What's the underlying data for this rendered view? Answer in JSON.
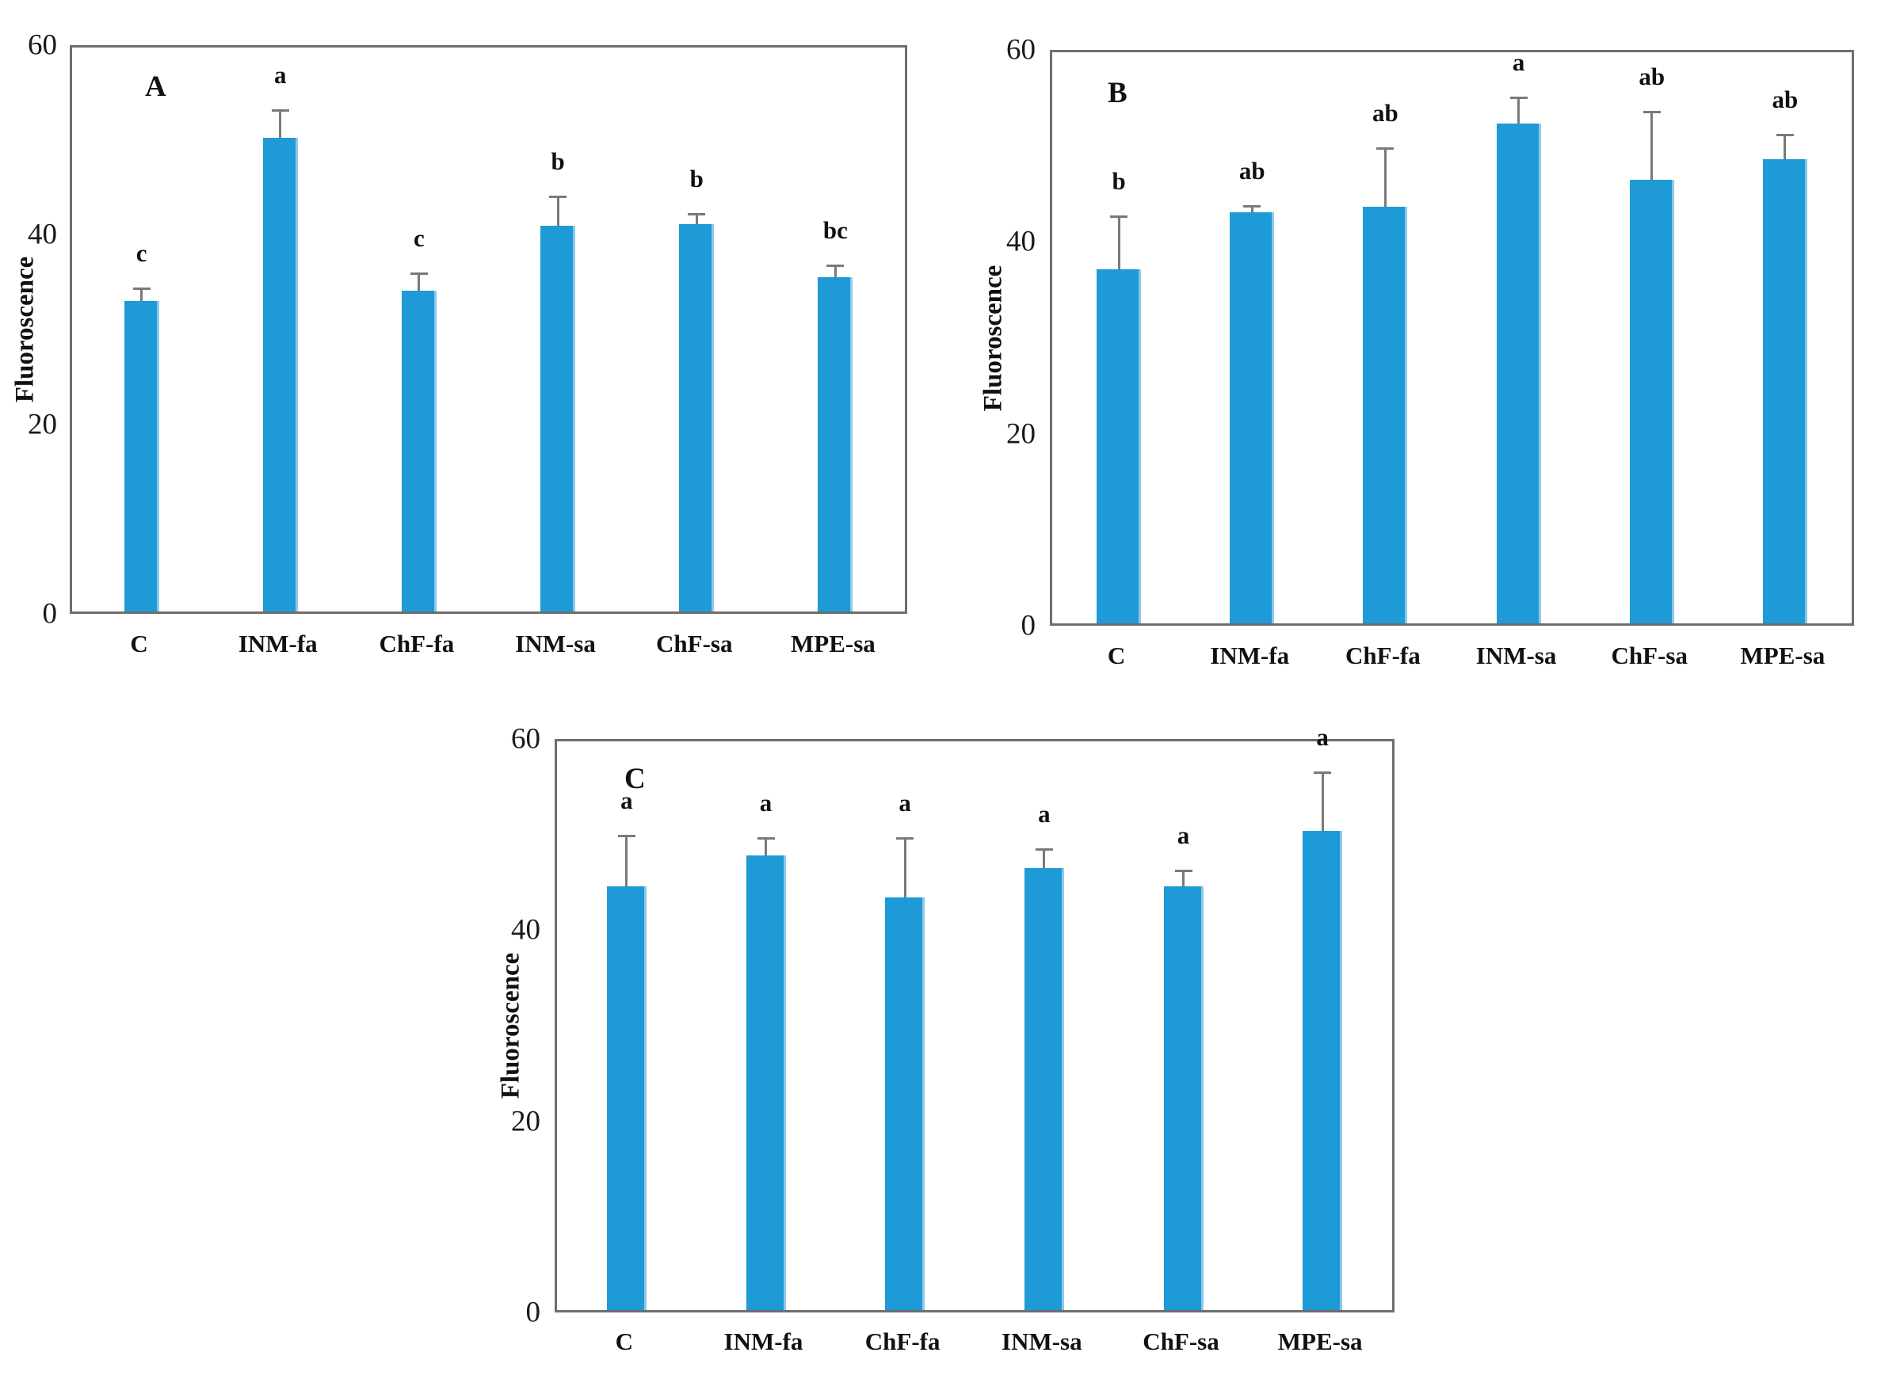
{
  "figure": {
    "ylabel": "Fluoroscence",
    "panels": [
      "A",
      "B",
      "C"
    ]
  },
  "style": {
    "bar_color": "#1e9ad6",
    "bar_edge_color": "#8ec7e8",
    "error_color": "#7a7a7a",
    "frame_color": "#6e6e6e",
    "text_color": "#111111"
  },
  "chart_data": [
    {
      "type": "bar",
      "panel": "A",
      "title": "",
      "xlabel": "",
      "ylabel": "Fluoroscence",
      "ylim": [
        0,
        60
      ],
      "yticks": [
        0,
        20,
        40,
        60
      ],
      "grid": false,
      "legend": "none",
      "categories": [
        "C",
        "INM-fa",
        "ChF-fa",
        "INM-sa",
        "ChF-sa",
        "MPE-sa"
      ],
      "values": [
        33.0,
        50.4,
        34.1,
        41.0,
        41.2,
        35.6
      ],
      "errors": [
        1.2,
        2.8,
        1.7,
        3.0,
        0.9,
        1.1
      ],
      "letters": [
        "c",
        "a",
        "c",
        "b",
        "b",
        "bc"
      ]
    },
    {
      "type": "bar",
      "panel": "B",
      "title": "",
      "xlabel": "",
      "ylabel": "Fluoroscence",
      "ylim": [
        0,
        60
      ],
      "yticks": [
        0,
        20,
        40,
        60
      ],
      "grid": false,
      "legend": "none",
      "categories": [
        "C",
        "INM-fa",
        "ChF-fa",
        "INM-sa",
        "ChF-sa",
        "MPE-sa"
      ],
      "values": [
        37.2,
        43.2,
        43.8,
        52.5,
        46.6,
        48.8
      ],
      "errors": [
        5.4,
        0.5,
        6.0,
        2.6,
        7.0,
        2.4
      ],
      "letters": [
        "b",
        "ab",
        "ab",
        "a",
        "ab",
        "ab"
      ]
    },
    {
      "type": "bar",
      "panel": "C",
      "title": "",
      "xlabel": "",
      "ylabel": "Fluoroscence",
      "ylim": [
        0,
        60
      ],
      "yticks": [
        0,
        20,
        40,
        60
      ],
      "grid": false,
      "legend": "none",
      "categories": [
        "C",
        "INM-fa",
        "ChF-fa",
        "INM-sa",
        "ChF-sa",
        "MPE-sa"
      ],
      "values": [
        44.7,
        48.0,
        43.5,
        46.6,
        44.7,
        50.6
      ],
      "errors": [
        5.2,
        1.6,
        6.1,
        1.9,
        1.5,
        6.0
      ],
      "letters": [
        "a",
        "a",
        "a",
        "a",
        "a",
        "a"
      ]
    }
  ]
}
